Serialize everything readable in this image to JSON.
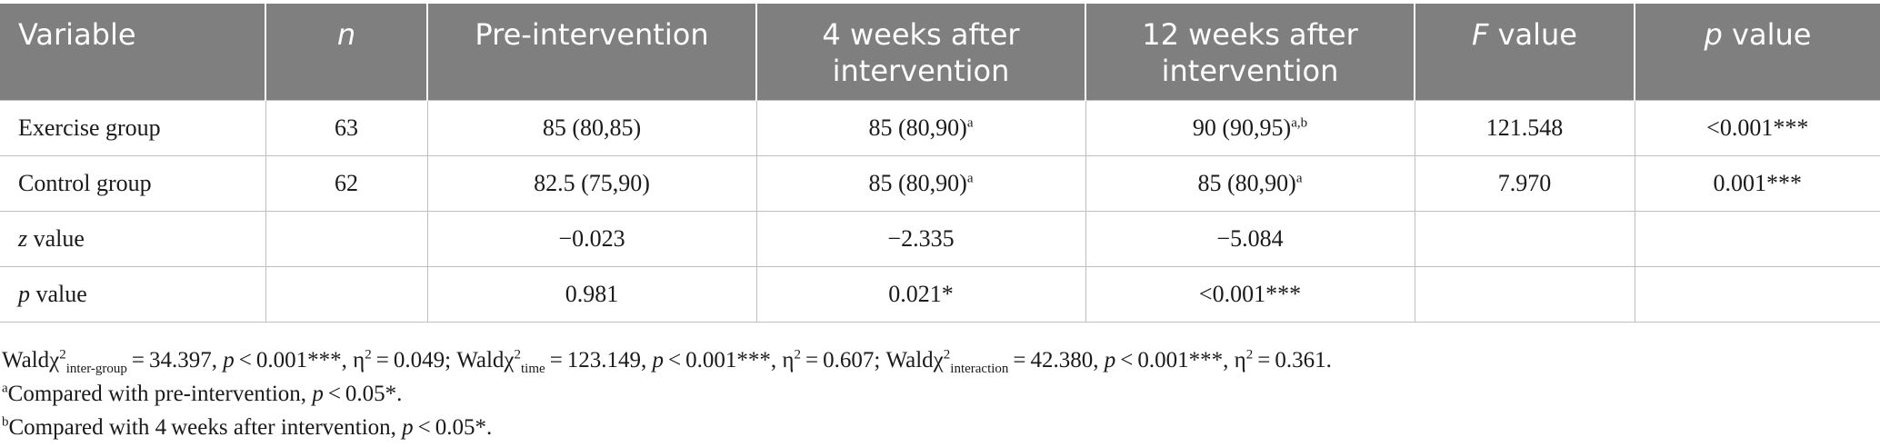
{
  "table": {
    "headers": {
      "variable": "Variable",
      "n": "n",
      "pre": "Pre-intervention",
      "w4_line1": "4 weeks after",
      "w4_line2": "intervention",
      "w12_line1": "12 weeks after",
      "w12_line2": "intervention",
      "f_italic": "F",
      "f_rest": " value",
      "p_italic": "p",
      "p_rest": " value"
    },
    "rows": [
      {
        "variable": "Exercise group",
        "n": "63",
        "pre": "85 (80,85)",
        "w4": "85 (80,90)",
        "w4_sup": "a",
        "w12": "90 (90,95)",
        "w12_sup": "a,b",
        "f": "121.548",
        "p": "<0.001***"
      },
      {
        "variable": "Control group",
        "n": "62",
        "pre": "82.5 (75,90)",
        "w4": "85 (80,90)",
        "w4_sup": "a",
        "w12": "85 (80,90)",
        "w12_sup": "a",
        "f": "7.970",
        "p": "0.001***"
      },
      {
        "variable_italic": "z",
        "variable_rest": " value",
        "n": "",
        "pre": "−0.023",
        "w4": "−2.335",
        "w12": "−5.084",
        "f": "",
        "p": ""
      },
      {
        "variable_italic": "p",
        "variable_rest": " value",
        "n": "",
        "pre": "0.981",
        "w4": "0.021*",
        "w12": "<0.001***",
        "f": "",
        "p": ""
      }
    ]
  },
  "footnotes": {
    "wald": {
      "t1": "Waldχ",
      "sup1": "2",
      "sub1": "inter-group",
      "t2": " = 34.397, ",
      "p1": "p",
      "t3": " < 0.001***, η",
      "sup2": "2",
      "t4": " = 0.049; Waldχ",
      "sup3": "2",
      "sub2": "time",
      "t5": " = 123.149, ",
      "p2": "p",
      "t6": " < 0.001***, η",
      "sup4": "2",
      "t7": " = 0.607; Waldχ",
      "sup5": "2",
      "sub3": "interaction",
      "t8": " = 42.380, ",
      "p3": "p",
      "t9": " < 0.001***, η",
      "sup6": "2",
      "t10": " = 0.361."
    },
    "a": {
      "mark": "a",
      "text": "Compared with pre-intervention, ",
      "p": "p",
      "tail": " < 0.05*."
    },
    "b": {
      "mark": "b",
      "text": "Compared with 4 weeks after intervention, ",
      "p": "p",
      "tail": " < 0.05*."
    }
  }
}
